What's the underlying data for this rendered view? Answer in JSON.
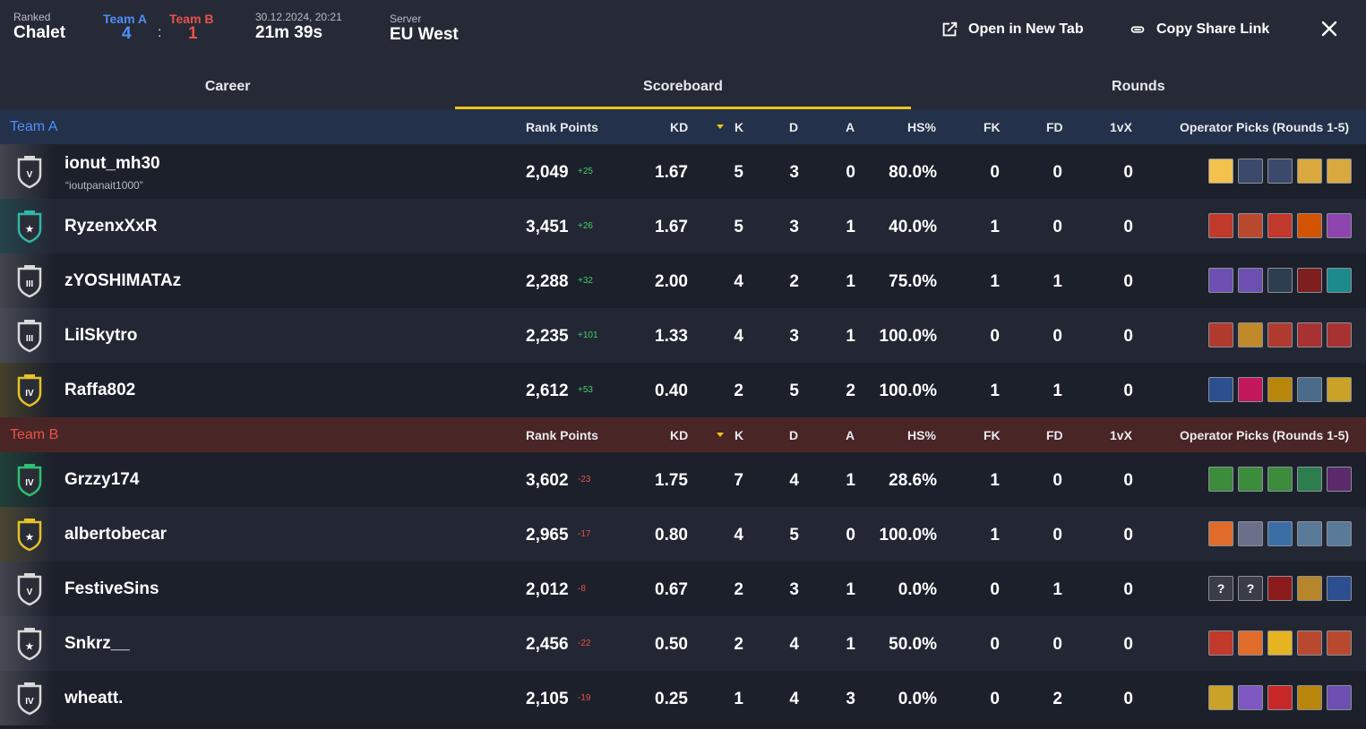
{
  "header": {
    "mode_label": "Ranked",
    "map": "Chalet",
    "team_a_label": "Team A",
    "team_b_label": "Team B",
    "score_a": "4",
    "score_sep": ":",
    "score_b": "1",
    "datetime": "30.12.2024, 20:21",
    "duration": "21m 39s",
    "server_label": "Server",
    "server": "EU West",
    "open_tab_label": "Open in New Tab",
    "copy_link_label": "Copy Share Link"
  },
  "tabs": [
    {
      "label": "Career",
      "active": false
    },
    {
      "label": "Scoreboard",
      "active": true
    },
    {
      "label": "Rounds",
      "active": false
    }
  ],
  "columns": {
    "rank_points": "Rank Points",
    "kd": "KD",
    "k": "K",
    "d": "D",
    "a": "A",
    "hs": "HS%",
    "fk": "FK",
    "fd": "FD",
    "onevx": "1vX",
    "ops": "Operator Picks (Rounds 1-5)"
  },
  "teams": {
    "a": {
      "name": "Team A",
      "color": "#4f8ef7",
      "players": [
        {
          "name": "ionut_mh30",
          "alias": "“ioutpanait1000”",
          "rank": "V",
          "rank_color": "#d9d9d9",
          "rp": "2,049",
          "delta": "+25",
          "kd": "1.67",
          "k": "5",
          "d": "3",
          "a": "0",
          "hs": "80.0%",
          "fk": "0",
          "fd": "0",
          "onevx": "0",
          "ops": [
            {
              "icon": "hexagon-icon",
              "color": "#f2c14e"
            },
            {
              "icon": "crown-icon",
              "color": "#3b4a6b"
            },
            {
              "icon": "crown-icon",
              "color": "#3b4a6b"
            },
            {
              "icon": "mask-icon",
              "color": "#d9a940"
            },
            {
              "icon": "mask-icon",
              "color": "#d9a940"
            }
          ]
        },
        {
          "name": "RyzenxXxR",
          "alias": "",
          "rank": "★",
          "rank_color": "#2fb7a8",
          "rp": "3,451",
          "delta": "+26",
          "kd": "1.67",
          "k": "5",
          "d": "3",
          "a": "1",
          "hs": "40.0%",
          "fk": "1",
          "fd": "0",
          "onevx": "0",
          "ops": [
            {
              "icon": "anchor-icon",
              "color": "#c0392b"
            },
            {
              "icon": "cross-icon",
              "color": "#b8492f"
            },
            {
              "icon": "anchor-icon",
              "color": "#c0392b"
            },
            {
              "icon": "hammer-icon",
              "color": "#d35400"
            },
            {
              "icon": "swirl-icon",
              "color": "#8e44ad"
            }
          ]
        },
        {
          "name": "zYOSHIMATAz",
          "alias": "",
          "rank": "III",
          "rank_color": "#d9d9d9",
          "rp": "2,288",
          "delta": "+32",
          "kd": "2.00",
          "k": "4",
          "d": "2",
          "a": "1",
          "hs": "75.0%",
          "fk": "1",
          "fd": "1",
          "onevx": "0",
          "ops": [
            {
              "icon": "stripes-icon",
              "color": "#6c4fb0"
            },
            {
              "icon": "stripes-icon",
              "color": "#6c4fb0"
            },
            {
              "icon": "target-icon",
              "color": "#2c3e50"
            },
            {
              "icon": "fox-icon",
              "color": "#7d1f1f"
            },
            {
              "icon": "wolf-icon",
              "color": "#1b8a8a"
            }
          ]
        },
        {
          "name": "LilSkytro",
          "alias": "",
          "rank": "III",
          "rank_color": "#d9d9d9",
          "rp": "2,235",
          "delta": "+101",
          "kd": "1.33",
          "k": "4",
          "d": "3",
          "a": "1",
          "hs": "100.0%",
          "fk": "0",
          "fd": "0",
          "onevx": "0",
          "ops": [
            {
              "icon": "burst-icon",
              "color": "#b03a2e"
            },
            {
              "icon": "claw-icon",
              "color": "#c08a2a"
            },
            {
              "icon": "burst-icon",
              "color": "#b03a2e"
            },
            {
              "icon": "skull-icon",
              "color": "#a83232"
            },
            {
              "icon": "skull-icon",
              "color": "#a83232"
            }
          ]
        },
        {
          "name": "Raffa802",
          "alias": "",
          "rank": "IV",
          "rank_color": "#e6c229",
          "rp": "2,612",
          "delta": "+53",
          "kd": "0.40",
          "k": "2",
          "d": "5",
          "a": "2",
          "hs": "100.0%",
          "fk": "1",
          "fd": "1",
          "onevx": "0",
          "ops": [
            {
              "icon": "wing-icon",
              "color": "#2c4f8f"
            },
            {
              "icon": "swoosh-icon",
              "color": "#c2185b"
            },
            {
              "icon": "shield-icon",
              "color": "#b8860b"
            },
            {
              "icon": "visor-icon",
              "color": "#4a6b8a"
            },
            {
              "icon": "blade-icon",
              "color": "#c9a227"
            }
          ]
        }
      ]
    },
    "b": {
      "name": "Team B",
      "color": "#e8524a",
      "players": [
        {
          "name": "Grzzy174",
          "alias": "",
          "rank": "IV",
          "rank_color": "#2fbf71",
          "rp": "3,602",
          "delta": "-23",
          "kd": "1.75",
          "k": "7",
          "d": "4",
          "a": "1",
          "hs": "28.6%",
          "fk": "1",
          "fd": "0",
          "onevx": "0",
          "ops": [
            {
              "icon": "tree-icon",
              "color": "#3d8b3d"
            },
            {
              "icon": "tree-icon",
              "color": "#3d8b3d"
            },
            {
              "icon": "tree-icon",
              "color": "#3d8b3d"
            },
            {
              "icon": "arrow-icon",
              "color": "#2e7d4f"
            },
            {
              "icon": "bird-icon",
              "color": "#5a2a6b"
            }
          ]
        },
        {
          "name": "albertobecar",
          "alias": "",
          "rank": "★",
          "rank_color": "#e6c229",
          "rp": "2,965",
          "delta": "-17",
          "kd": "0.80",
          "k": "4",
          "d": "5",
          "a": "0",
          "hs": "100.0%",
          "fk": "1",
          "fd": "0",
          "onevx": "0",
          "ops": [
            {
              "icon": "hand-icon",
              "color": "#e06b2a"
            },
            {
              "icon": "power-icon",
              "color": "#6b6f8a"
            },
            {
              "icon": "visor-icon",
              "color": "#3b6ea5"
            },
            {
              "icon": "helmet-icon",
              "color": "#5a7a9a"
            },
            {
              "icon": "helmet-icon",
              "color": "#5a7a9a"
            }
          ]
        },
        {
          "name": "FestiveSins",
          "alias": "",
          "rank": "V",
          "rank_color": "#d9d9d9",
          "rp": "2,012",
          "delta": "-8",
          "kd": "0.67",
          "k": "2",
          "d": "3",
          "a": "1",
          "hs": "0.0%",
          "fk": "0",
          "fd": "1",
          "onevx": "0",
          "ops": [
            {
              "icon": "question-icon",
              "color": "#3a3d47"
            },
            {
              "icon": "question-icon",
              "color": "#3a3d47"
            },
            {
              "icon": "fox-icon",
              "color": "#8b1a1a"
            },
            {
              "icon": "claw-icon",
              "color": "#b8862a"
            },
            {
              "icon": "wing-icon",
              "color": "#2c4f8f"
            }
          ]
        },
        {
          "name": "Snkrz__",
          "alias": "",
          "rank": "★",
          "rank_color": "#d9d9d9",
          "rp": "2,456",
          "delta": "-22",
          "kd": "0.50",
          "k": "2",
          "d": "4",
          "a": "1",
          "hs": "50.0%",
          "fk": "0",
          "fd": "0",
          "onevx": "0",
          "ops": [
            {
              "icon": "hammer-icon",
              "color": "#c0392b"
            },
            {
              "icon": "hand-icon",
              "color": "#e06b2a"
            },
            {
              "icon": "mask-icon",
              "color": "#e6b422"
            },
            {
              "icon": "cross-icon",
              "color": "#b8492f"
            },
            {
              "icon": "cross-icon",
              "color": "#b8492f"
            }
          ]
        },
        {
          "name": "wheatt.",
          "alias": "",
          "rank": "IV",
          "rank_color": "#d9d9d9",
          "rp": "2,105",
          "delta": "-19",
          "kd": "0.25",
          "k": "1",
          "d": "4",
          "a": "3",
          "hs": "0.0%",
          "fk": "0",
          "fd": "2",
          "onevx": "0",
          "ops": [
            {
              "icon": "blade-icon",
              "color": "#c9a227"
            },
            {
              "icon": "swirl-icon",
              "color": "#7e57c2"
            },
            {
              "icon": "burst-icon",
              "color": "#c62828"
            },
            {
              "icon": "shield-icon",
              "color": "#b8860b"
            },
            {
              "icon": "stripes-icon",
              "color": "#6c4fb0"
            }
          ]
        }
      ]
    }
  }
}
